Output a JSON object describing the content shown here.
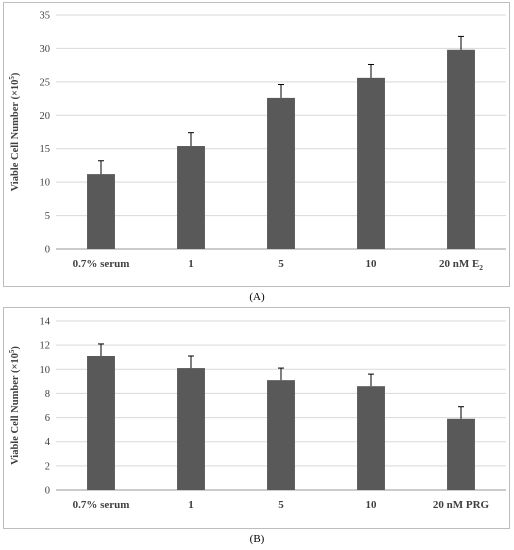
{
  "chart_data": [
    {
      "type": "bar",
      "panel_label": "(A)",
      "categories": [
        "0.7% serum",
        "1",
        "5",
        "10",
        "20 nM E"
      ],
      "category_subscripts": [
        "",
        "",
        "",
        "",
        "2"
      ],
      "values": [
        11.2,
        15.4,
        22.6,
        25.6,
        29.8
      ],
      "errors": [
        2.0,
        2.0,
        2.0,
        2.0,
        2.0
      ],
      "ylabel": "Viable Cell Number (×10",
      "ylabel_sup": "5",
      "ylabel_end": ")",
      "ylim": [
        0,
        35
      ],
      "yticks": [
        "0",
        "5",
        "10",
        "15",
        "20",
        "25",
        "30",
        "35"
      ],
      "grid": true,
      "bar_color": "#595959"
    },
    {
      "type": "bar",
      "panel_label": "(B)",
      "categories": [
        "0.7% serum",
        "1",
        "5",
        "10",
        "20 nM PRG"
      ],
      "category_subscripts": [
        "",
        "",
        "",
        "",
        ""
      ],
      "values": [
        11.1,
        10.1,
        9.1,
        8.6,
        5.9
      ],
      "errors": [
        1.0,
        1.0,
        1.0,
        1.0,
        1.0
      ],
      "ylabel": "Viable Cell Number (×10",
      "ylabel_sup": "5",
      "ylabel_end": ")",
      "ylim": [
        0,
        14
      ],
      "yticks": [
        "0",
        "2",
        "4",
        "6",
        "8",
        "10",
        "12",
        "14"
      ],
      "grid": true,
      "bar_color": "#595959"
    }
  ],
  "captions": {
    "a": "(A)",
    "b": "(B)"
  }
}
